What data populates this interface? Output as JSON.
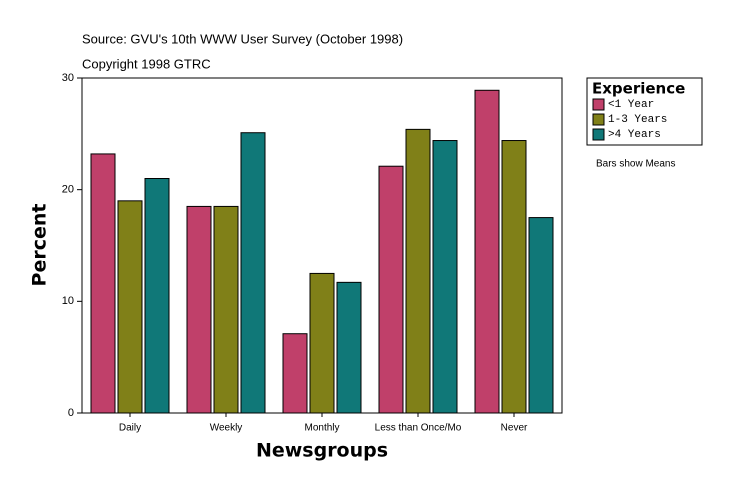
{
  "chart_data": {
    "type": "bar",
    "title": "Source: GVU's 10th WWW User Survey (October 1998)",
    "subtitle": "Copyright 1998 GTRC",
    "note": "Bars show Means",
    "x_label": "Newsgroups",
    "y_label": "Percent",
    "legend_title": "Experience",
    "categories": [
      "Daily",
      "Weekly",
      "Monthly",
      "Less than Once/Mo",
      "Never"
    ],
    "series": [
      {
        "name": "<1 Year",
        "color": "#c0406a",
        "values": [
          23.2,
          18.5,
          7.1,
          22.1,
          28.9
        ]
      },
      {
        "name": "1-3 Years",
        "color": "#808018",
        "values": [
          19.0,
          18.5,
          12.5,
          25.4,
          24.4
        ]
      },
      {
        "name": ">4 Years",
        "color": "#107878",
        "values": [
          21.0,
          25.1,
          11.7,
          24.4,
          17.5
        ]
      }
    ],
    "ylim": [
      0,
      30
    ],
    "yticks": [
      0,
      10,
      20,
      30
    ],
    "grid": false
  }
}
